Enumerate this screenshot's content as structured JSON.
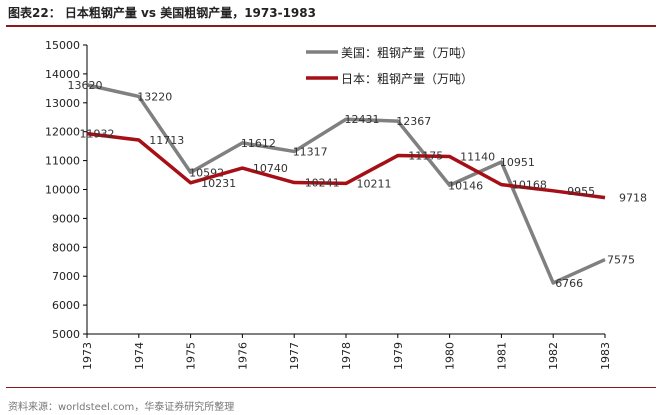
{
  "header": {
    "title": "图表22：  日本粗钢产量 vs 美国粗钢产量，1973-1983"
  },
  "footer": {
    "source": "资料来源：worldsteel.com，华泰证券研究所整理"
  },
  "chart_data": {
    "type": "line",
    "title": "",
    "xlabel": "",
    "ylabel": "",
    "categories": [
      "1973",
      "1974",
      "1975",
      "1976",
      "1977",
      "1978",
      "1979",
      "1980",
      "1981",
      "1982",
      "1983"
    ],
    "ylim": [
      5000,
      15000
    ],
    "yticks": [
      5000,
      6000,
      7000,
      8000,
      9000,
      10000,
      11000,
      12000,
      13000,
      14000,
      15000
    ],
    "grid": false,
    "legend_placement": "top-center",
    "series": [
      {
        "name": "美国：粗钢产量（万吨）",
        "color": "#808080",
        "values": [
          13620,
          13220,
          10592,
          11612,
          11317,
          12431,
          12367,
          10146,
          10951,
          6766,
          7575
        ]
      },
      {
        "name": "日本：粗钢产量（万吨）",
        "color": "#a50f15",
        "values": [
          11932,
          11713,
          10231,
          10740,
          10241,
          10211,
          11175,
          11140,
          10168,
          9955,
          9718
        ]
      }
    ]
  }
}
